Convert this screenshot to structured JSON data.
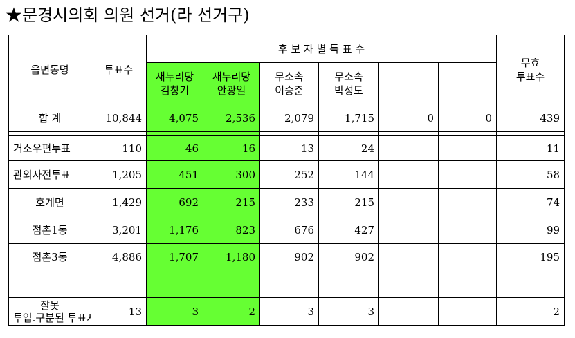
{
  "title": "★문경시의회 의원 선거(라 선거구)",
  "header": {
    "region": "읍면동명",
    "votes": "투표수",
    "candidates_group": "후 보 자 별 득 표 수",
    "invalid_line1": "무효",
    "invalid_line2": "투표수",
    "candidates": [
      {
        "party": "새누리당",
        "name": "김창기"
      },
      {
        "party": "새누리당",
        "name": "안광일"
      },
      {
        "party": "무소속",
        "name": "이승준"
      },
      {
        "party": "무소속",
        "name": "박성도"
      },
      {
        "party": "",
        "name": ""
      },
      {
        "party": "",
        "name": ""
      }
    ]
  },
  "total_row": {
    "label": "합  계",
    "votes": "10,844",
    "c1": "4,075",
    "c2": "2,536",
    "c3": "2,079",
    "c4": "1,715",
    "c5": "0",
    "c6": "0",
    "invalid": "439"
  },
  "rows": [
    {
      "label": "거소우편투표",
      "votes": "110",
      "c1": "46",
      "c2": "16",
      "c3": "13",
      "c4": "24",
      "c5": "",
      "c6": "",
      "invalid": "11"
    },
    {
      "label": "관외사전투표",
      "votes": "1,205",
      "c1": "451",
      "c2": "300",
      "c3": "252",
      "c4": "144",
      "c5": "",
      "c6": "",
      "invalid": "58"
    },
    {
      "label": "호계면",
      "votes": "1,429",
      "c1": "692",
      "c2": "215",
      "c3": "233",
      "c4": "215",
      "c5": "",
      "c6": "",
      "invalid": "74"
    },
    {
      "label": "점촌1동",
      "votes": "3,201",
      "c1": "1,176",
      "c2": "823",
      "c3": "676",
      "c4": "427",
      "c5": "",
      "c6": "",
      "invalid": "99"
    },
    {
      "label": "점촌3동",
      "votes": "4,886",
      "c1": "1,707",
      "c2": "1,180",
      "c3": "902",
      "c4": "902",
      "c5": "",
      "c6": "",
      "invalid": "195"
    },
    {
      "label": "",
      "votes": "",
      "c1": "",
      "c2": "",
      "c3": "",
      "c4": "",
      "c5": "",
      "c6": "",
      "invalid": ""
    }
  ],
  "last_row": {
    "label_line1": "잘못",
    "label_line2": "투입.구분된 투표지",
    "votes": "13",
    "c1": "3",
    "c2": "2",
    "c3": "3",
    "c4": "3",
    "c5": "",
    "c6": "",
    "invalid": "2"
  }
}
